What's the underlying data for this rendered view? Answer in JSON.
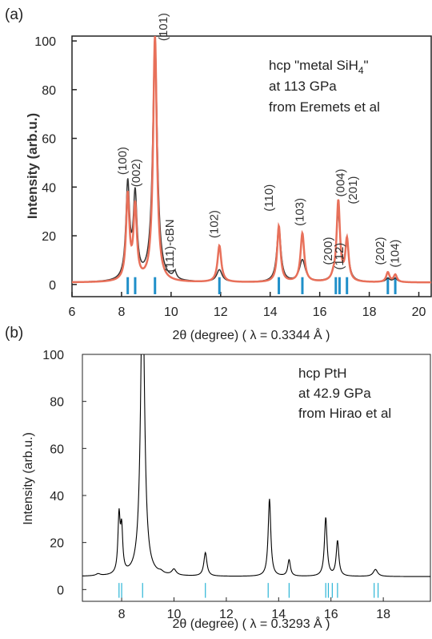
{
  "chart_data": [
    {
      "panel_label": "(a)",
      "type": "line",
      "xlabel": "2θ (degree) ( λ = 0.3344 Å )",
      "ylabel": "Intensity (arb.u.)",
      "xlim": [
        6,
        20.5
      ],
      "ylim": [
        -5,
        102
      ],
      "xticks": [
        6,
        8,
        10,
        12,
        14,
        16,
        18,
        20
      ],
      "yticks": [
        0,
        20,
        40,
        60,
        80,
        100
      ],
      "annotation": [
        "hcp \"metal SiH",
        "4",
        "\"",
        "at 113 GPa",
        "from Eremets et al"
      ],
      "series": [
        {
          "color": "#333333",
          "peaks": [
            [
              8.25,
              39,
              0.09
            ],
            [
              8.55,
              34,
              0.09
            ],
            [
              9.35,
              100,
              0.11
            ],
            [
              10.15,
              3,
              0.08
            ],
            [
              11.95,
              5,
              0.13
            ],
            [
              14.35,
              23,
              0.1
            ],
            [
              15.3,
              9,
              0.14
            ],
            [
              16.75,
              27,
              0.1
            ],
            [
              17.1,
              14,
              0.1
            ],
            [
              18.75,
              1.5,
              0.1
            ],
            [
              19.05,
              1.5,
              0.1
            ]
          ],
          "baseline": 0.8
        },
        {
          "color": "#e8705a",
          "peaks": [
            [
              8.25,
              35,
              0.08
            ],
            [
              8.55,
              30,
              0.08
            ],
            [
              9.35,
              101,
              0.09
            ],
            [
              11.95,
              15,
              0.09
            ],
            [
              14.35,
              23,
              0.08
            ],
            [
              15.3,
              20,
              0.09
            ],
            [
              16.55,
              1.5,
              0.08
            ],
            [
              16.75,
              33,
              0.08
            ],
            [
              17.1,
              17,
              0.08
            ],
            [
              18.75,
              4,
              0.08
            ],
            [
              19.05,
              3,
              0.08
            ]
          ],
          "baseline": 0.8
        }
      ],
      "tick_marks": {
        "color": "#1f8fc9",
        "positions": [
          8.25,
          8.55,
          9.35,
          11.95,
          14.35,
          15.3,
          16.65,
          16.8,
          17.1,
          18.75,
          19.05
        ],
        "y": 0
      },
      "peak_labels": [
        {
          "text": "(100)",
          "x": 8.2,
          "y": 45
        },
        {
          "text": "(002)",
          "x": 8.75,
          "y": 40
        },
        {
          "text": "(101)",
          "x": 9.85,
          "y": 100
        },
        {
          "text": "(111)-cBN",
          "x": 10.1,
          "y": 5
        },
        {
          "text": "(102)",
          "x": 11.9,
          "y": 19
        },
        {
          "text": "(110)",
          "x": 14.1,
          "y": 30
        },
        {
          "text": "(103)",
          "x": 15.35,
          "y": 24
        },
        {
          "text": "(200)",
          "x": 16.5,
          "y": 8
        },
        {
          "text": "(112)",
          "x": 16.95,
          "y": 6
        },
        {
          "text": "(004)",
          "x": 17.0,
          "y": 36
        },
        {
          "text": "(201)",
          "x": 17.5,
          "y": 33
        },
        {
          "text": "(202)",
          "x": 18.6,
          "y": 8
        },
        {
          "text": "(104)",
          "x": 19.2,
          "y": 7
        }
      ]
    },
    {
      "panel_label": "(b)",
      "type": "line",
      "xlabel": "2θ (degree) ( λ = 0.3293 Å )",
      "ylabel": "Intensity (arb.u.)",
      "xlim": [
        6.5,
        19.8
      ],
      "ylim": [
        -5,
        100
      ],
      "xticks": [
        8,
        10,
        12,
        14,
        16,
        18
      ],
      "yticks": [
        0,
        20,
        40,
        60,
        80,
        100
      ],
      "annotation": [
        "hcp PtH",
        "at 42.9 GPa",
        "from Hirao et al"
      ],
      "series": [
        {
          "color": "#000000",
          "peaks": [
            [
              7.1,
              0.8,
              0.1
            ],
            [
              7.9,
              24,
              0.05
            ],
            [
              8.0,
              18,
              0.05
            ],
            [
              8.8,
              130,
              0.09
            ],
            [
              9.5,
              0.8,
              0.1
            ],
            [
              10.0,
              2.5,
              0.1
            ],
            [
              11.2,
              10,
              0.07
            ],
            [
              13.65,
              33,
              0.06
            ],
            [
              14.4,
              7,
              0.06
            ],
            [
              15.8,
              25,
              0.06
            ],
            [
              16.25,
              15,
              0.06
            ],
            [
              17.7,
              3,
              0.1
            ]
          ],
          "baseline": 5.5
        }
      ],
      "tick_marks": {
        "color": "#2bb5d6",
        "positions": [
          7.9,
          8.0,
          8.8,
          11.2,
          13.6,
          14.4,
          15.8,
          15.9,
          16.05,
          16.25,
          17.65,
          17.8
        ],
        "y": 0
      }
    }
  ]
}
